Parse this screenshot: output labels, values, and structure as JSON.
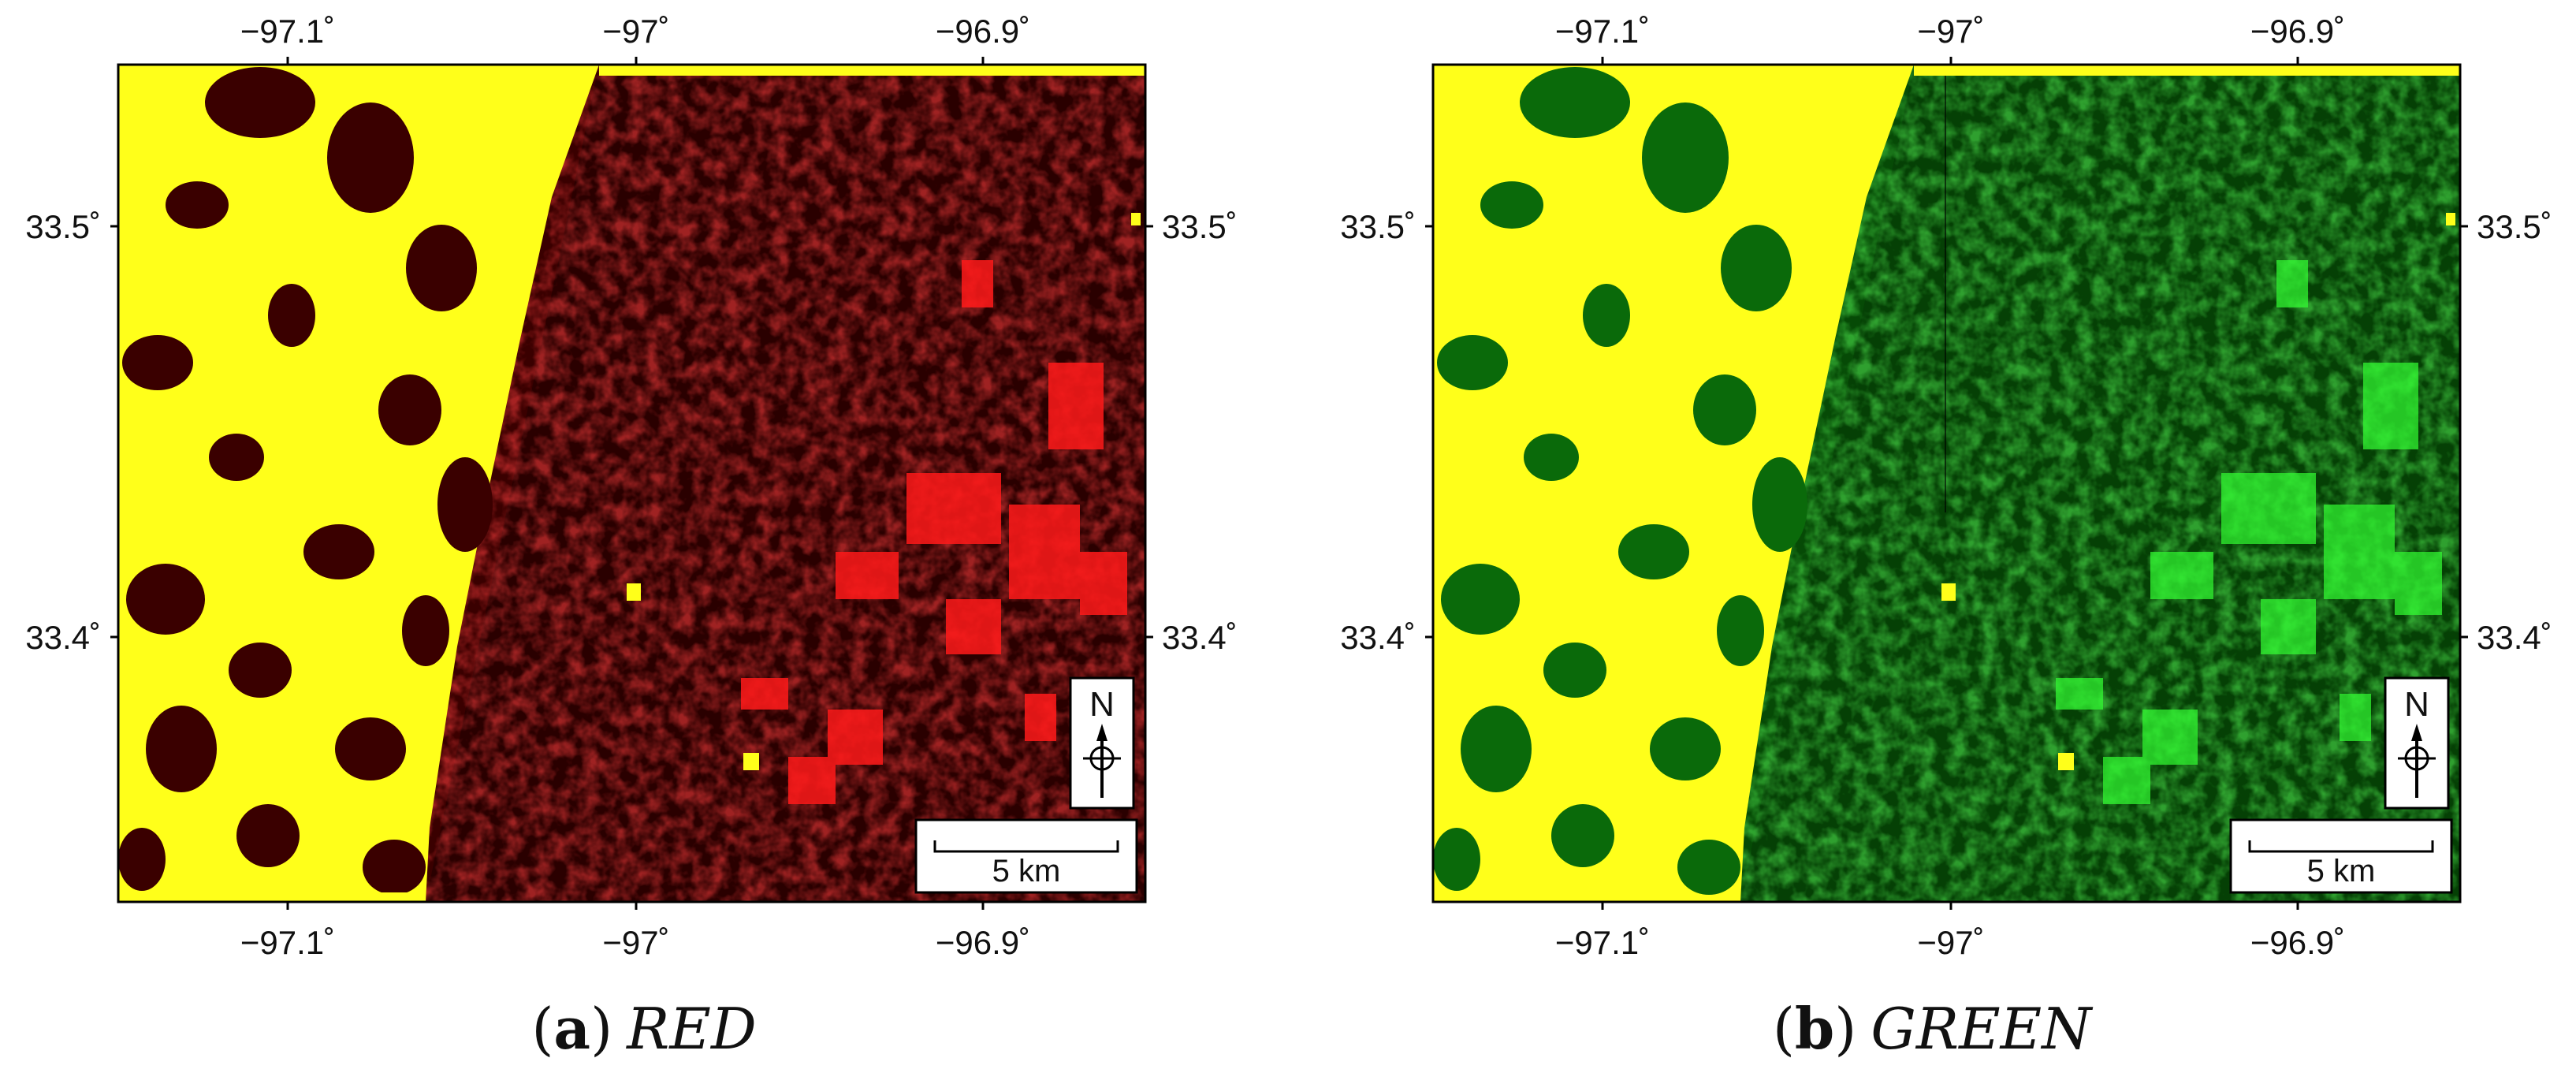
{
  "panels": [
    {
      "letter": "a",
      "name": "RED",
      "band_color": "#d40000",
      "dark_color": "#2a0000",
      "mid_color": "#5a0000",
      "bright_color": "#ff1a1a"
    },
    {
      "letter": "b",
      "name": "GREEN",
      "band_color": "#1fbf1f",
      "dark_color": "#002a00",
      "mid_color": "#0a6a0a",
      "bright_color": "#33ff33"
    }
  ],
  "cloud_color": "#ffff1a",
  "axes": {
    "x_ticks": [
      "−97.1˚",
      "−97˚",
      "−96.9˚"
    ],
    "y_ticks": [
      "33.5˚",
      "33.4˚"
    ]
  },
  "north_arrow": {
    "label": "N"
  },
  "scale_bar": {
    "label": "5 km"
  },
  "icons": {
    "north_arrow": "north-arrow-icon",
    "compass": "compass-crosshair-icon"
  }
}
